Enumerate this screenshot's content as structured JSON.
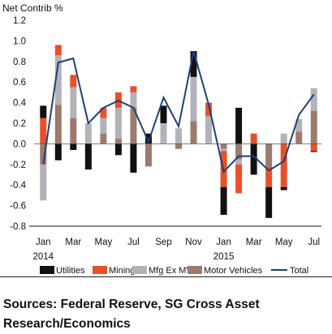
{
  "chart_data": {
    "type": "bar",
    "stacked": true,
    "ylabel": "Net Contrib %",
    "ylim": [
      -0.8,
      1.2
    ],
    "ytick_values": [
      -0.8,
      -0.6,
      -0.4,
      -0.2,
      0.0,
      0.2,
      0.4,
      0.6,
      0.8,
      1.0,
      1.2
    ],
    "ytick_labels": [
      "-0.8",
      "-0.6",
      "-0.4",
      "-0.2",
      "0.0",
      "0.2",
      "0.4",
      "0.6",
      "0.8",
      "1.0",
      "1.2"
    ],
    "categories": [
      "Jan 2014",
      "Feb 2014",
      "Mar 2014",
      "Apr 2014",
      "May 2014",
      "Jun 2014",
      "Jul 2014",
      "Aug 2014",
      "Sep 2014",
      "Oct 2014",
      "Nov 2014",
      "Dec 2014",
      "Jan 2015",
      "Feb 2015",
      "Mar 2015",
      "Apr 2015",
      "May 2015",
      "Jun 2015",
      "Jul 2015"
    ],
    "xtick_labels": [
      {
        "index": 0,
        "label": "Jan"
      },
      {
        "index": 2,
        "label": "Mar"
      },
      {
        "index": 4,
        "label": "May"
      },
      {
        "index": 6,
        "label": "Jul"
      },
      {
        "index": 8,
        "label": "Sep"
      },
      {
        "index": 10,
        "label": "Nov"
      },
      {
        "index": 12,
        "label": "Jan"
      },
      {
        "index": 14,
        "label": "Mar"
      },
      {
        "index": 16,
        "label": "May"
      },
      {
        "index": 18,
        "label": "Jul"
      }
    ],
    "year_labels": [
      {
        "index": 0,
        "label": "2014"
      },
      {
        "index": 12,
        "label": "2015"
      }
    ],
    "series": [
      {
        "name": "Motor Vehicles",
        "color": "#9a7b6d",
        "values": [
          -0.2,
          0.38,
          0.25,
          0.0,
          0.1,
          0.05,
          0.35,
          -0.22,
          0.0,
          -0.05,
          0.22,
          0.0,
          -0.05,
          -0.15,
          0.0,
          -0.22,
          0.0,
          0.12,
          0.32
        ]
      },
      {
        "name": "Mfg Ex MV",
        "color": "#b2b2b8",
        "values": [
          -0.35,
          0.48,
          0.3,
          0.2,
          0.15,
          0.3,
          0.15,
          0.0,
          0.2,
          0.15,
          0.43,
          0.27,
          -0.02,
          -0.05,
          0.0,
          0.0,
          0.1,
          0.12,
          0.22
        ]
      },
      {
        "name": "Mining",
        "color": "#e8502a",
        "values": [
          0.25,
          0.1,
          0.12,
          0.0,
          0.1,
          0.15,
          0.06,
          0.0,
          0.0,
          0.0,
          0.0,
          0.13,
          -0.35,
          -0.28,
          0.1,
          -0.2,
          -0.42,
          0.0,
          -0.07
        ]
      },
      {
        "name": "Utilities",
        "color": "#111111",
        "values": [
          0.12,
          -0.16,
          -0.06,
          -0.25,
          0.0,
          -0.11,
          -0.28,
          0.1,
          0.17,
          0.0,
          0.25,
          0.0,
          -0.27,
          0.35,
          -0.3,
          -0.3,
          -0.03,
          0.0,
          -0.01
        ]
      }
    ],
    "line_series": {
      "name": "Total",
      "color": "#1f3f77",
      "values": [
        -0.2,
        0.79,
        0.83,
        0.2,
        0.35,
        0.42,
        0.35,
        0.02,
        0.45,
        0.17,
        0.9,
        0.38,
        -0.27,
        -0.12,
        -0.12,
        -0.26,
        -0.17,
        0.28,
        0.48
      ]
    },
    "legend_position": "bottom",
    "grid": false
  },
  "footer": {
    "source_text": "Sources: Federal Reserve, SG Cross Asset Research/Economics"
  }
}
